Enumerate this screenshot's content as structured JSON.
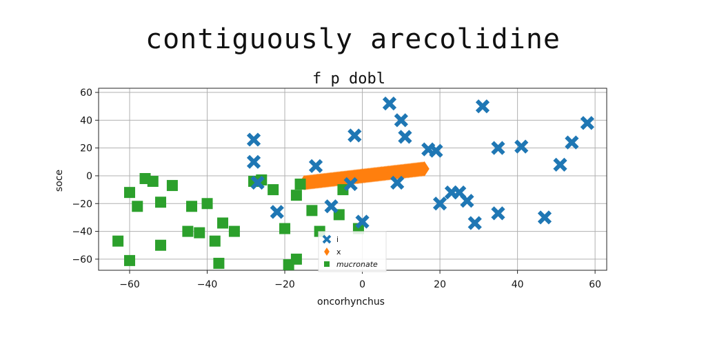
{
  "suptitle": "contiguously arecolidine",
  "chart_data": {
    "type": "scatter",
    "title": "f p dobl",
    "xlabel": "oncorhynchus",
    "ylabel": "soce",
    "xlim": [
      -68,
      63
    ],
    "ylim": [
      -68,
      63
    ],
    "xticks": [
      -60,
      -40,
      -20,
      0,
      20,
      40,
      60
    ],
    "yticks": [
      -60,
      -40,
      -20,
      0,
      20,
      40,
      60
    ],
    "grid": true,
    "legend_position": "lower-center",
    "series": [
      {
        "name": "i",
        "marker": "x",
        "color": "#1f77b4",
        "points": [
          [
            -28,
            26
          ],
          [
            -28,
            10
          ],
          [
            -27,
            -5
          ],
          [
            -22,
            -26
          ],
          [
            -12,
            7
          ],
          [
            -8,
            -22
          ],
          [
            -2,
            29
          ],
          [
            -3,
            -6
          ],
          [
            0,
            -33
          ],
          [
            7,
            52
          ],
          [
            10,
            40
          ],
          [
            11,
            28
          ],
          [
            9,
            -5
          ],
          [
            17,
            19
          ],
          [
            19,
            18
          ],
          [
            20,
            -20
          ],
          [
            23,
            -12
          ],
          [
            25,
            -12
          ],
          [
            27,
            -18
          ],
          [
            29,
            -34
          ],
          [
            31,
            50
          ],
          [
            35,
            20
          ],
          [
            35,
            -27
          ],
          [
            41,
            21
          ],
          [
            47,
            -30
          ],
          [
            51,
            8
          ],
          [
            54,
            24
          ],
          [
            58,
            38
          ]
        ]
      },
      {
        "name": "x",
        "marker": "diamond",
        "color": "#ff7f0e",
        "line_from": [
          -15,
          -5
        ],
        "line_to": [
          16,
          5
        ]
      },
      {
        "name": "mucronate",
        "marker": "square",
        "color": "#2ca02c",
        "points": [
          [
            -63,
            -47
          ],
          [
            -60,
            -12
          ],
          [
            -58,
            -22
          ],
          [
            -54,
            -4
          ],
          [
            -52,
            -19
          ],
          [
            -52,
            -50
          ],
          [
            -49,
            -7
          ],
          [
            -44,
            -22
          ],
          [
            -42,
            -41
          ],
          [
            -40,
            -20
          ],
          [
            -38,
            -47
          ],
          [
            -37,
            -63
          ],
          [
            -36,
            -34
          ],
          [
            -33,
            -40
          ],
          [
            -28,
            -4
          ],
          [
            -26,
            -3
          ],
          [
            -23,
            -10
          ],
          [
            -20,
            -38
          ],
          [
            -17,
            -14
          ],
          [
            -17,
            -60
          ],
          [
            -16,
            -6
          ],
          [
            -19,
            -64
          ],
          [
            -13,
            -25
          ],
          [
            -11,
            -40
          ],
          [
            -6,
            -28
          ],
          [
            -5,
            -10
          ],
          [
            -1,
            -38
          ],
          [
            -45,
            -40
          ],
          [
            -60,
            -61
          ],
          [
            -56,
            -2
          ]
        ]
      }
    ]
  }
}
